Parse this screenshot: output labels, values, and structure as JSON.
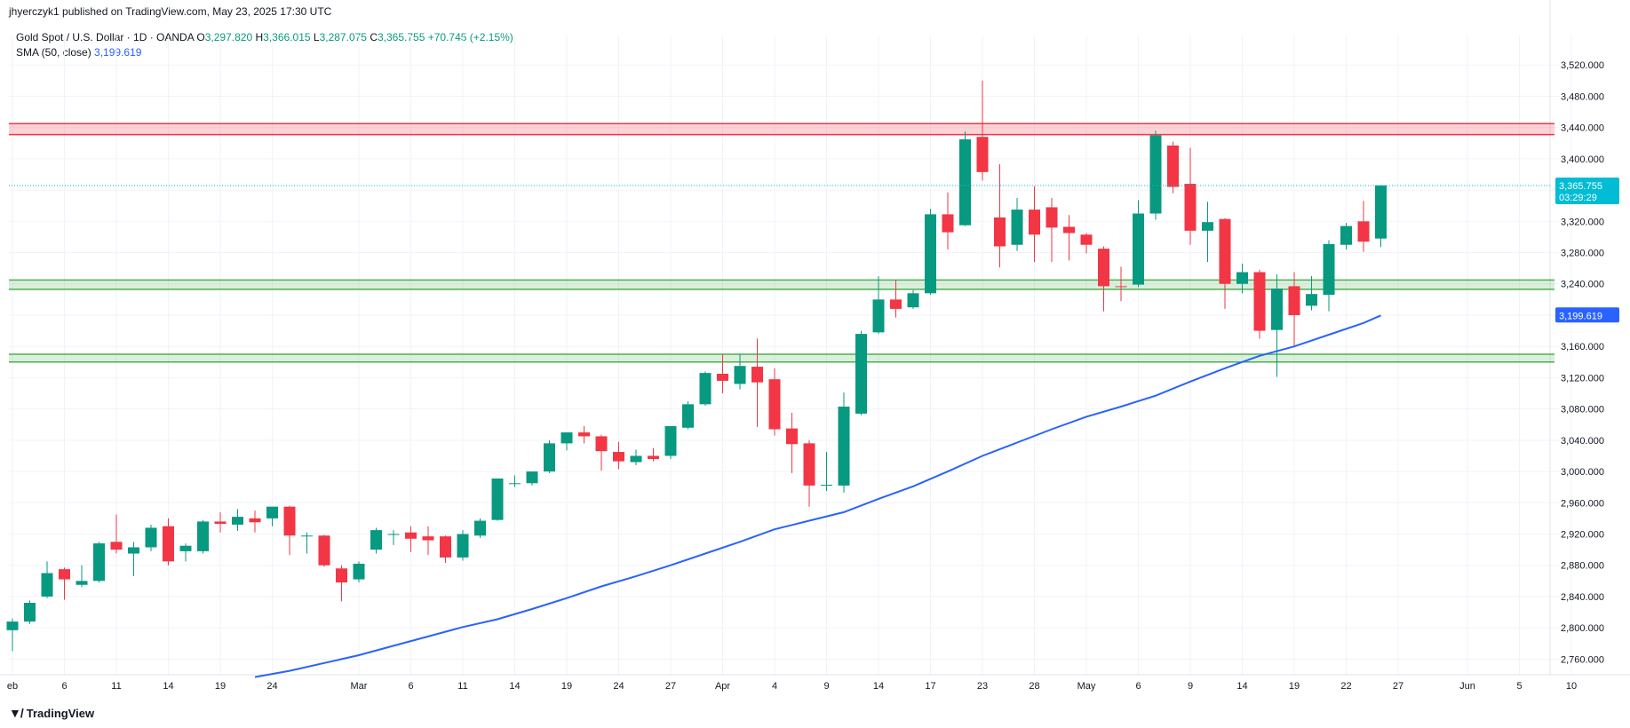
{
  "publish_line": "jhyerczyk1 published on TradingView.com, May 23, 2025 17:30 UTC",
  "legend": {
    "symbol": "Gold Spot / U.S. Dollar · 1D · OANDA",
    "o_label": "O",
    "o_value": "3,297.820",
    "h_label": "H",
    "h_value": "3,366.015",
    "l_label": "L",
    "l_value": "3,287.075",
    "c_label": "C",
    "c_value": "3,365.755",
    "change": "+70.745 (+2.15%)",
    "sma_label": "SMA (50, close)",
    "sma_value": "3,199.619"
  },
  "footer": {
    "logo_icon": "tradingview-logo-icon",
    "logo_text": "TradingView"
  },
  "colors": {
    "up": "#089981",
    "down": "#f23645",
    "sma": "#2962ff",
    "price_tag": "#00bcd4",
    "resistance": "#f23645",
    "support": "#4caf50"
  },
  "chart_data": {
    "type": "candlestick",
    "ylim": [
      2740,
      3535
    ],
    "y_ticks": [
      2760,
      2800,
      2840,
      2880,
      2920,
      2960,
      3000,
      3040,
      3080,
      3120,
      3160,
      3200,
      3240,
      3280,
      3320,
      3360,
      3400,
      3440,
      3480,
      3520
    ],
    "y_tick_labels": [
      "2,760.000",
      "2,800.000",
      "2,840.000",
      "2,880.000",
      "2,920.000",
      "2,960.000",
      "3,000.000",
      "3,040.000",
      "3,080.000",
      "3,120.000",
      "3,160.000",
      "3,200.000",
      "3,240.000",
      "3,280.000",
      "3,320.000",
      "3,360.000",
      "3,400.000",
      "3,440.000",
      "3,480.000",
      "3,520.000"
    ],
    "x_ticks": [
      {
        "label": "eb",
        "i": 0
      },
      {
        "label": "6",
        "i": 3
      },
      {
        "label": "11",
        "i": 6
      },
      {
        "label": "14",
        "i": 9
      },
      {
        "label": "19",
        "i": 12
      },
      {
        "label": "24",
        "i": 15
      },
      {
        "label": "Mar",
        "i": 20
      },
      {
        "label": "6",
        "i": 23
      },
      {
        "label": "11",
        "i": 26
      },
      {
        "label": "14",
        "i": 29
      },
      {
        "label": "19",
        "i": 32
      },
      {
        "label": "24",
        "i": 35
      },
      {
        "label": "27",
        "i": 38
      },
      {
        "label": "Apr",
        "i": 41
      },
      {
        "label": "4",
        "i": 44
      },
      {
        "label": "9",
        "i": 47
      },
      {
        "label": "14",
        "i": 50
      },
      {
        "label": "17",
        "i": 53
      },
      {
        "label": "23",
        "i": 56
      },
      {
        "label": "28",
        "i": 59
      },
      {
        "label": "May",
        "i": 62
      },
      {
        "label": "6",
        "i": 65
      },
      {
        "label": "9",
        "i": 68
      },
      {
        "label": "14",
        "i": 71
      },
      {
        "label": "19",
        "i": 74
      },
      {
        "label": "22",
        "i": 77
      },
      {
        "label": "27",
        "i": 80
      },
      {
        "label": "Jun",
        "i": 84
      },
      {
        "label": "5",
        "i": 87
      },
      {
        "label": "10",
        "i": 90
      }
    ],
    "candles": [
      [
        2797,
        2812,
        2770,
        2808
      ],
      [
        2808,
        2835,
        2805,
        2832
      ],
      [
        2840,
        2885,
        2838,
        2870
      ],
      [
        2875,
        2877,
        2836,
        2862
      ],
      [
        2855,
        2880,
        2852,
        2860
      ],
      [
        2860,
        2910,
        2858,
        2908
      ],
      [
        2910,
        2945,
        2895,
        2900
      ],
      [
        2895,
        2910,
        2866,
        2903
      ],
      [
        2903,
        2932,
        2898,
        2928
      ],
      [
        2930,
        2940,
        2880,
        2885
      ],
      [
        2898,
        2908,
        2885,
        2905
      ],
      [
        2898,
        2938,
        2895,
        2936
      ],
      [
        2936,
        2948,
        2922,
        2933
      ],
      [
        2932,
        2952,
        2924,
        2942
      ],
      [
        2940,
        2950,
        2922,
        2935
      ],
      [
        2940,
        2955,
        2930,
        2955
      ],
      [
        2955,
        2956,
        2893,
        2918
      ],
      [
        2917,
        2922,
        2895,
        2918
      ],
      [
        2918,
        2919,
        2878,
        2880
      ],
      [
        2876,
        2880,
        2834,
        2858
      ],
      [
        2862,
        2885,
        2858,
        2882
      ],
      [
        2900,
        2928,
        2895,
        2925
      ],
      [
        2920,
        2925,
        2906,
        2920
      ],
      [
        2922,
        2930,
        2897,
        2914
      ],
      [
        2917,
        2930,
        2893,
        2912
      ],
      [
        2917,
        2918,
        2883,
        2890
      ],
      [
        2890,
        2925,
        2886,
        2920
      ],
      [
        2918,
        2940,
        2915,
        2937
      ],
      [
        2938,
        2990,
        2937,
        2991
      ],
      [
        2985,
        2995,
        2980,
        2985
      ],
      [
        2985,
        3000,
        2982,
        3000
      ],
      [
        3000,
        3040,
        2998,
        3036
      ],
      [
        3036,
        3050,
        3027,
        3050
      ],
      [
        3050,
        3058,
        3036,
        3045
      ],
      [
        3045,
        3047,
        3001,
        3026
      ],
      [
        3025,
        3038,
        3003,
        3013
      ],
      [
        3012,
        3028,
        3008,
        3020
      ],
      [
        3020,
        3030,
        3013,
        3016
      ],
      [
        3020,
        3058,
        3016,
        3058
      ],
      [
        3056,
        3090,
        3054,
        3086
      ],
      [
        3086,
        3128,
        3084,
        3126
      ],
      [
        3125,
        3150,
        3100,
        3116
      ],
      [
        3112,
        3150,
        3105,
        3135
      ],
      [
        3134,
        3170,
        3057,
        3114
      ],
      [
        3118,
        3132,
        3046,
        3054
      ],
      [
        3055,
        3075,
        2998,
        3035
      ],
      [
        3036,
        3040,
        2955,
        2982
      ],
      [
        2983,
        3025,
        2975,
        2983
      ],
      [
        2982,
        3101,
        2973,
        3083
      ],
      [
        3074,
        3180,
        3072,
        3176
      ],
      [
        3178,
        3250,
        3176,
        3220
      ],
      [
        3220,
        3245,
        3197,
        3208
      ],
      [
        3210,
        3232,
        3208,
        3228
      ],
      [
        3228,
        3336,
        3226,
        3329
      ],
      [
        3329,
        3357,
        3284,
        3306
      ],
      [
        3315,
        3435,
        3314,
        3425
      ],
      [
        3428,
        3500,
        3372,
        3383
      ],
      [
        3325,
        3393,
        3261,
        3288
      ],
      [
        3290,
        3350,
        3282,
        3335
      ],
      [
        3335,
        3365,
        3268,
        3303
      ],
      [
        3338,
        3350,
        3268,
        3312
      ],
      [
        3313,
        3328,
        3270,
        3305
      ],
      [
        3303,
        3305,
        3279,
        3290
      ],
      [
        3285,
        3288,
        3205,
        3237
      ],
      [
        3237,
        3262,
        3218,
        3236
      ],
      [
        3239,
        3347,
        3236,
        3330
      ],
      [
        3330,
        3436,
        3322,
        3430
      ],
      [
        3417,
        3422,
        3356,
        3364
      ],
      [
        3368,
        3414,
        3290,
        3308
      ],
      [
        3308,
        3345,
        3268,
        3319
      ],
      [
        3323,
        3324,
        3208,
        3240
      ],
      [
        3240,
        3266,
        3228,
        3255
      ],
      [
        3255,
        3258,
        3170,
        3180
      ],
      [
        3181,
        3252,
        3121,
        3234
      ],
      [
        3237,
        3255,
        3160,
        3200
      ],
      [
        3212,
        3250,
        3206,
        3227
      ],
      [
        3226,
        3296,
        3205,
        3291
      ],
      [
        3290,
        3318,
        3284,
        3314
      ],
      [
        3320,
        3346,
        3281,
        3294
      ],
      [
        3298,
        3366,
        3287,
        3366
      ]
    ],
    "sma": [
      [
        14,
        2737
      ],
      [
        16,
        2745
      ],
      [
        18,
        2755
      ],
      [
        20,
        2765
      ],
      [
        22,
        2777
      ],
      [
        24,
        2789
      ],
      [
        26,
        2801
      ],
      [
        28,
        2811
      ],
      [
        30,
        2824
      ],
      [
        32,
        2838
      ],
      [
        34,
        2853
      ],
      [
        36,
        2866
      ],
      [
        38,
        2880
      ],
      [
        40,
        2895
      ],
      [
        42,
        2910
      ],
      [
        44,
        2926
      ],
      [
        46,
        2937
      ],
      [
        48,
        2948
      ],
      [
        50,
        2965
      ],
      [
        52,
        2981
      ],
      [
        54,
        3000
      ],
      [
        56,
        3020
      ],
      [
        58,
        3037
      ],
      [
        60,
        3054
      ],
      [
        62,
        3070
      ],
      [
        64,
        3083
      ],
      [
        66,
        3097
      ],
      [
        68,
        3115
      ],
      [
        70,
        3132
      ],
      [
        72,
        3148
      ],
      [
        74,
        3160
      ],
      [
        76,
        3175
      ],
      [
        78,
        3190
      ],
      [
        79,
        3199.619
      ]
    ],
    "levels": [
      {
        "kind": "resistance",
        "low": 3431,
        "high": 3445
      },
      {
        "kind": "support",
        "low": 3233,
        "high": 3245
      },
      {
        "kind": "support",
        "low": 3140,
        "high": 3150
      }
    ],
    "current_price": 3365.755,
    "current_price_label": "3,365.755",
    "countdown_label": "03:29:29",
    "sma_last_label": "3,199.619"
  }
}
